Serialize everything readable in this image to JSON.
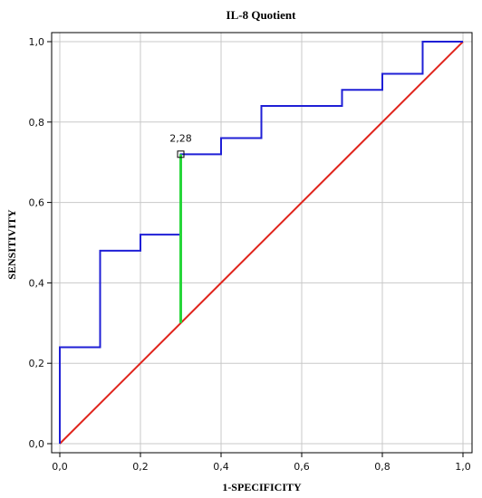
{
  "chart_data": {
    "type": "line",
    "title": "IL-8 Quotient",
    "xlabel": "1-SPECIFICITY",
    "ylabel": "SENSITIVITY",
    "xlim": [
      0,
      1
    ],
    "ylim": [
      0,
      1
    ],
    "x_ticks": [
      "0,0",
      "0,2",
      "0,4",
      "0,6",
      "0,8",
      "1,0"
    ],
    "y_ticks": [
      "0,0",
      "0,2",
      "0,4",
      "0,6",
      "0,8",
      "1,0"
    ],
    "grid": true,
    "colors": {
      "roc": "#1f1fd6",
      "reference": "#e0241c",
      "youden": "#27d63a",
      "grid": "#c8c8c8"
    },
    "series": [
      {
        "style": "step",
        "x": [
          0.0,
          0.0,
          0.1,
          0.1,
          0.2,
          0.2,
          0.3,
          0.3,
          0.4,
          0.4,
          0.5,
          0.5,
          0.7,
          0.7,
          0.8,
          0.8,
          0.9,
          0.9,
          1.0
        ],
        "y": [
          0.0,
          0.24,
          0.24,
          0.48,
          0.48,
          0.52,
          0.52,
          0.72,
          0.72,
          0.76,
          0.76,
          0.84,
          0.84,
          0.88,
          0.88,
          0.92,
          0.92,
          1.0,
          1.0
        ]
      },
      {
        "style": "reference",
        "x": [
          0,
          1
        ],
        "y": [
          0,
          1
        ]
      }
    ],
    "annotations": [
      {
        "text": "2,28",
        "point": [
          0.3,
          0.72
        ],
        "segment_from": [
          0.3,
          0.3
        ],
        "segment_to": [
          0.3,
          0.72
        ]
      }
    ]
  }
}
